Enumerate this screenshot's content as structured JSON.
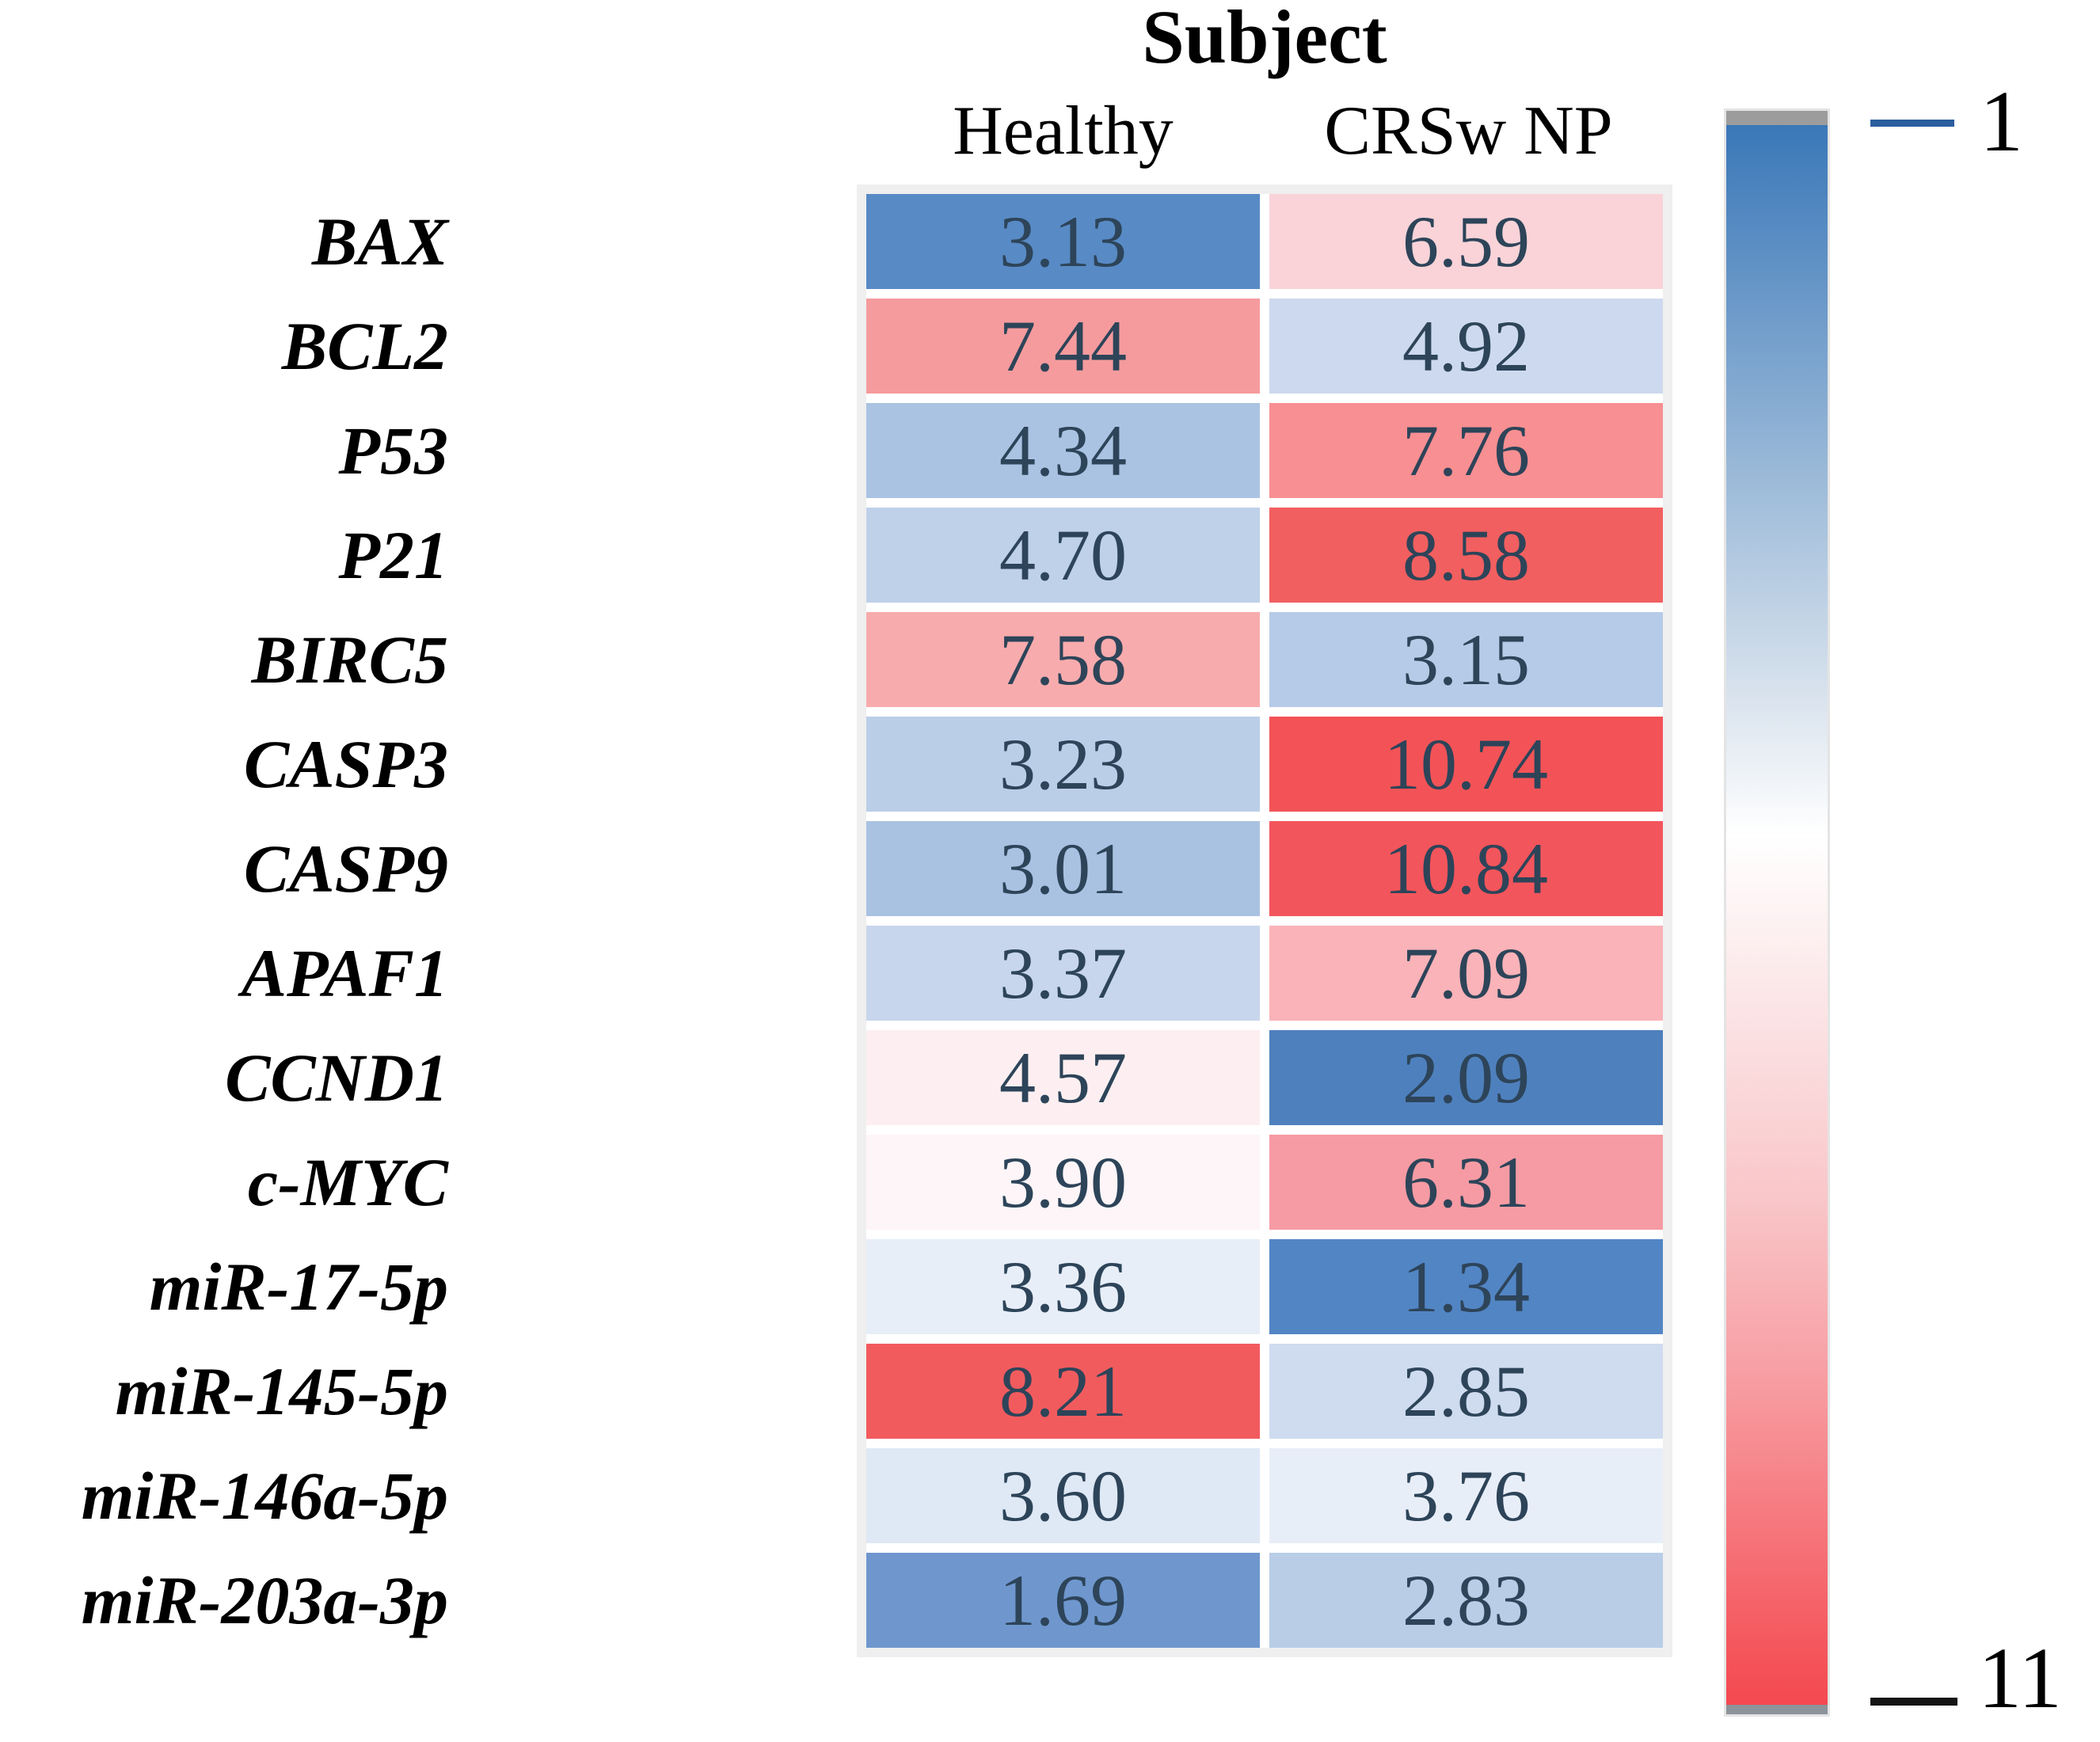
{
  "title": "Subject",
  "legend": {
    "min_label": "1",
    "max_label": "11"
  },
  "colors": {
    "value_text": "#2d4459",
    "table_border": "#efefef",
    "legend_gradient_top": "#3a78b8",
    "legend_gradient_mid": "#ffffff",
    "legend_gradient_bottom": "#f4484f",
    "legend_cap_top": "#9c9c9c",
    "legend_cap_bottom": "#8d939a",
    "legend_tick_top": "#2b5e9e",
    "legend_tick_bottom": "#141414"
  },
  "chart_data": {
    "type": "heatmap",
    "title": "Subject",
    "columns": [
      "Healthy",
      "CRSw NP"
    ],
    "scale": {
      "min": 1,
      "max": 11,
      "min_color": "blue",
      "max_color": "red",
      "colorbar_position": "right",
      "colorbar_labels": [
        "1",
        "11"
      ]
    },
    "rows": [
      {
        "gene": "BAX",
        "values": [
          3.13,
          6.59
        ],
        "display": [
          "3.13",
          "6.59"
        ],
        "cell_colors": [
          "#588ac5",
          "#f9d3d8"
        ]
      },
      {
        "gene": "BCL2",
        "values": [
          7.44,
          4.92
        ],
        "display": [
          "7.44",
          "4.92"
        ],
        "cell_colors": [
          "#f59b9d",
          "#cdd9ee"
        ]
      },
      {
        "gene": "P53",
        "values": [
          4.34,
          7.76
        ],
        "display": [
          "4.34",
          "7.76"
        ],
        "cell_colors": [
          "#aac3e2",
          "#f88f92"
        ]
      },
      {
        "gene": "P21",
        "values": [
          4.7,
          8.58
        ],
        "display": [
          "4.70",
          "8.58"
        ],
        "cell_colors": [
          "#bed1e9",
          "#f25f60"
        ]
      },
      {
        "gene": "BIRC5",
        "values": [
          7.58,
          3.15
        ],
        "display": [
          "7.58",
          "3.15"
        ],
        "cell_colors": [
          "#f8abad",
          "#b6cbe7"
        ]
      },
      {
        "gene": "CASP3",
        "values": [
          3.23,
          10.74
        ],
        "display": [
          "3.23",
          "10.74"
        ],
        "cell_colors": [
          "#bbcee8",
          "#f35357"
        ]
      },
      {
        "gene": "CASP9",
        "values": [
          3.01,
          10.84
        ],
        "display": [
          "3.01",
          "10.84"
        ],
        "cell_colors": [
          "#a9c2e2",
          "#f3555c"
        ]
      },
      {
        "gene": "APAF1",
        "values": [
          3.37,
          7.09
        ],
        "display": [
          "3.37",
          "7.09"
        ],
        "cell_colors": [
          "#c7d6ec",
          "#fab3b8"
        ]
      },
      {
        "gene": "CCND1",
        "values": [
          4.57,
          2.09
        ],
        "display": [
          "4.57",
          "2.09"
        ],
        "cell_colors": [
          "#fdeff1",
          "#4e80bd"
        ]
      },
      {
        "gene": "c-MYC",
        "values": [
          3.9,
          6.31
        ],
        "display": [
          "3.90",
          "6.31"
        ],
        "cell_colors": [
          "#fdf5f7",
          "#f69ba3"
        ]
      },
      {
        "gene": "miR-17-5p",
        "values": [
          3.36,
          1.34
        ],
        "display": [
          "3.36",
          "1.34"
        ],
        "cell_colors": [
          "#e7eef8",
          "#5285c4"
        ]
      },
      {
        "gene": "miR-145-5p",
        "values": [
          8.21,
          2.85
        ],
        "display": [
          "8.21",
          "2.85"
        ],
        "cell_colors": [
          "#f25b5e",
          "#cfdcef"
        ]
      },
      {
        "gene": "miR-146a-5p",
        "values": [
          3.6,
          3.76
        ],
        "display": [
          "3.60",
          "3.76"
        ],
        "cell_colors": [
          "#dfe8f5",
          "#e8eef8"
        ]
      },
      {
        "gene": "miR-203a-3p",
        "values": [
          1.69,
          2.83
        ],
        "display": [
          "1.69",
          "2.83"
        ],
        "cell_colors": [
          "#6f97ce",
          "#b9cde7"
        ]
      }
    ]
  }
}
